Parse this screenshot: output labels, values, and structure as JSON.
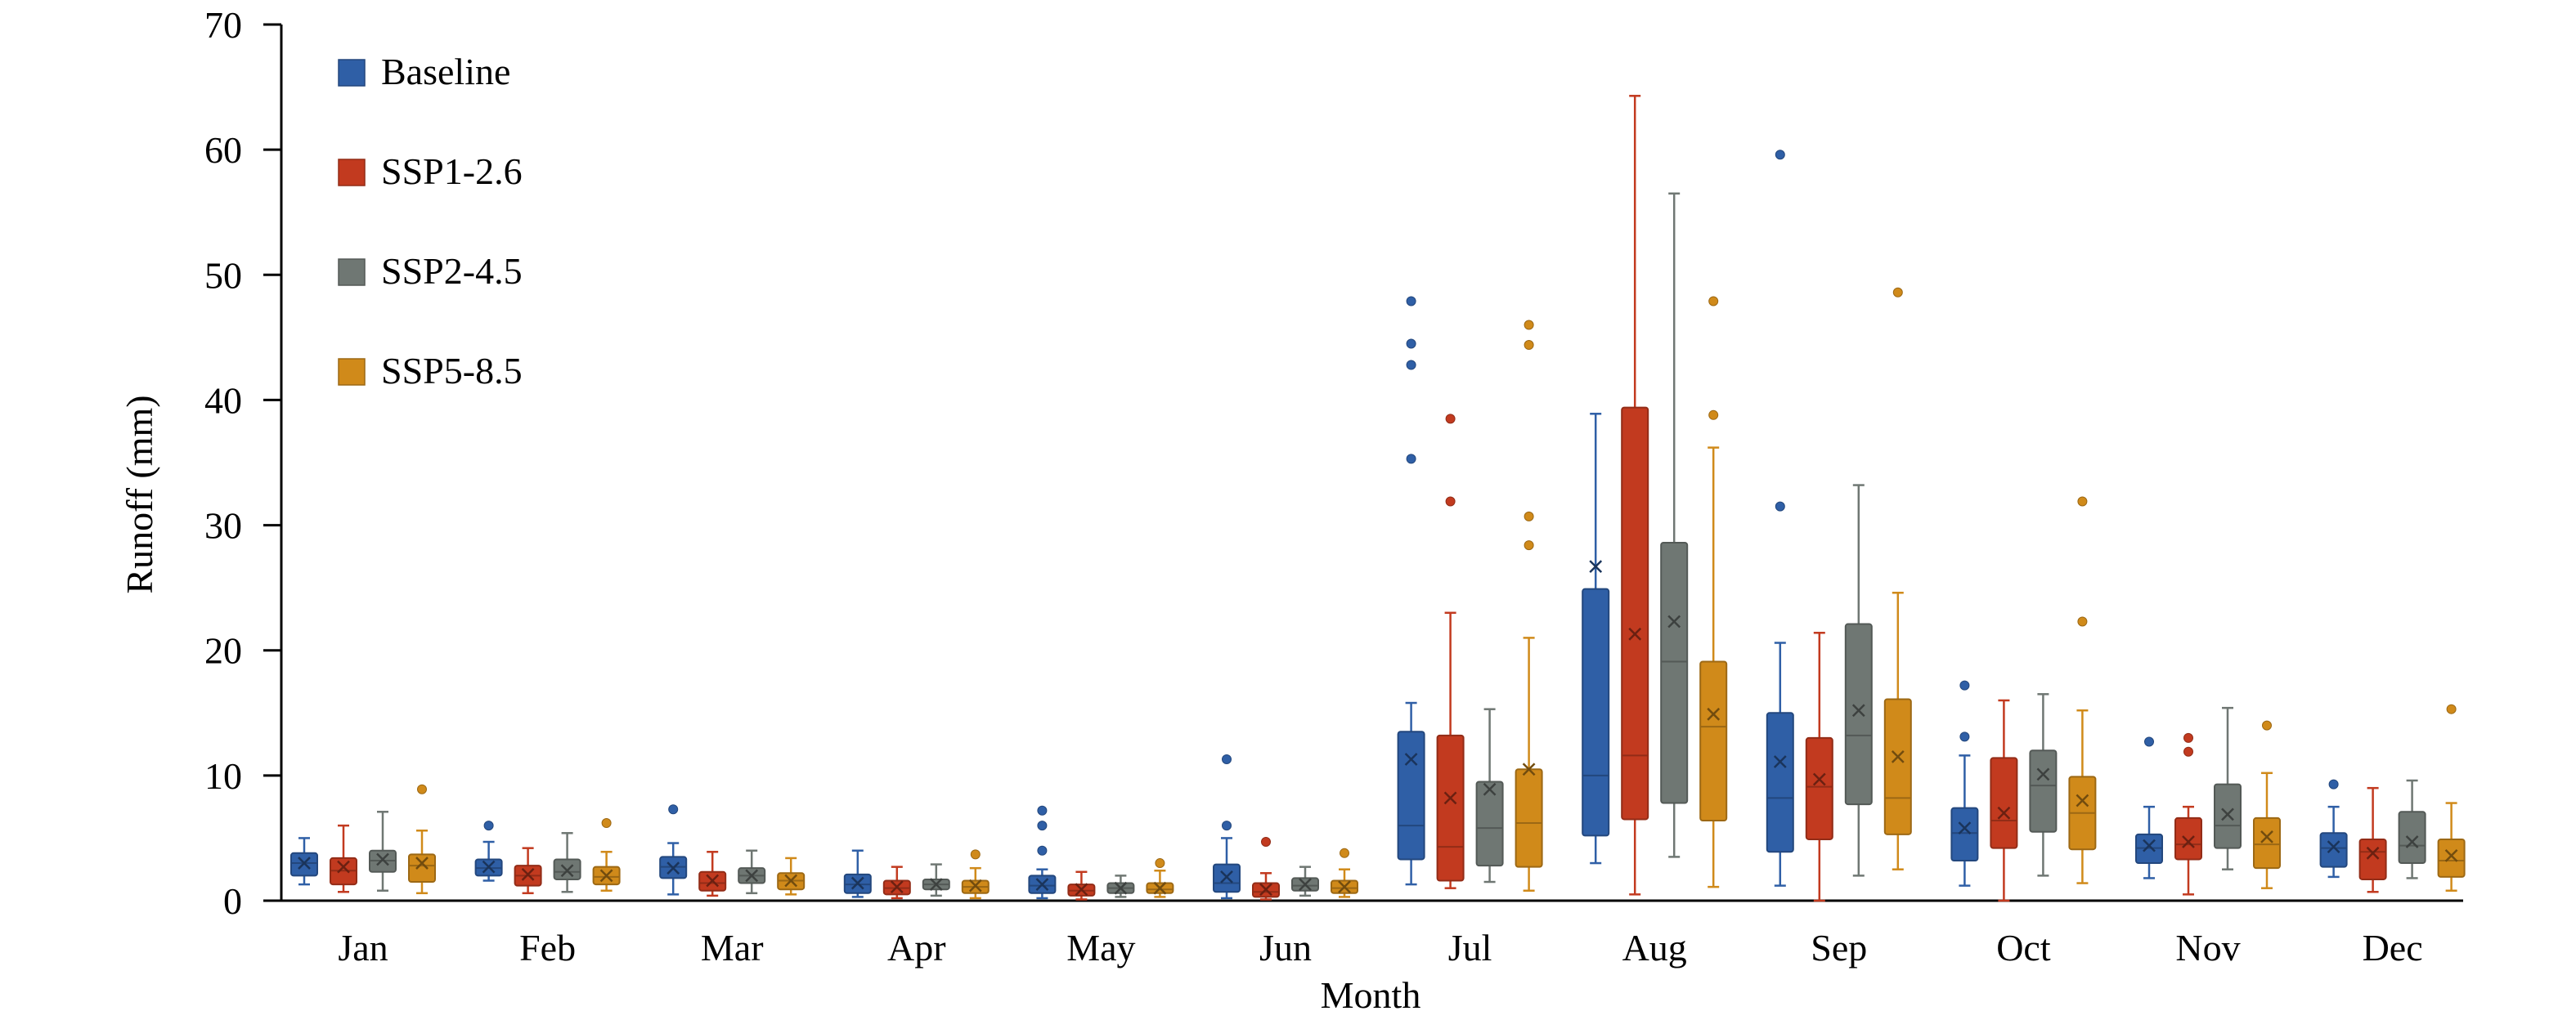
{
  "colors": {
    "Baseline": "#2f5fa6",
    "SSP1-2.6": "#c23a1f",
    "SSP2-4.5": "#6f7773",
    "SSP5-8.5": "#d08a1a"
  },
  "chart_data": {
    "type": "boxplot",
    "xlabel": "Month",
    "ylabel": "Runoff (mm)",
    "ylim": [
      0,
      70
    ],
    "yticks": [
      0,
      10,
      20,
      30,
      40,
      50,
      60,
      70
    ],
    "grid": false,
    "legend_position": "top-left",
    "categories": [
      "Jan",
      "Feb",
      "Mar",
      "Apr",
      "May",
      "Jun",
      "Jul",
      "Aug",
      "Sep",
      "Oct",
      "Nov",
      "Dec"
    ],
    "series": [
      {
        "name": "Baseline",
        "boxes": [
          {
            "min": 1.3,
            "q1": 2.0,
            "median": 3.0,
            "q3": 3.8,
            "max": 5.0,
            "mean": 3.0,
            "outliers": []
          },
          {
            "min": 1.6,
            "q1": 2.0,
            "median": 2.6,
            "q3": 3.3,
            "max": 4.7,
            "mean": 2.7,
            "outliers": [
              6.0
            ]
          },
          {
            "min": 0.5,
            "q1": 1.8,
            "median": 2.7,
            "q3": 3.5,
            "max": 4.6,
            "mean": 2.6,
            "outliers": [
              7.3
            ]
          },
          {
            "min": 0.3,
            "q1": 0.6,
            "median": 1.3,
            "q3": 2.1,
            "max": 4.0,
            "mean": 1.4,
            "outliers": []
          },
          {
            "min": 0.2,
            "q1": 0.6,
            "median": 1.2,
            "q3": 2.0,
            "max": 2.5,
            "mean": 1.3,
            "outliers": [
              4.0,
              6.0,
              7.2
            ]
          },
          {
            "min": 0.2,
            "q1": 0.7,
            "median": 1.4,
            "q3": 2.9,
            "max": 5.0,
            "mean": 1.9,
            "outliers": [
              6.0,
              11.3
            ]
          },
          {
            "min": 1.3,
            "q1": 3.3,
            "median": 6.0,
            "q3": 13.5,
            "max": 15.8,
            "mean": 11.3,
            "outliers": [
              35.3,
              42.8,
              44.5,
              47.9
            ]
          },
          {
            "min": 3.0,
            "q1": 5.2,
            "median": 10.0,
            "q3": 24.9,
            "max": 38.9,
            "mean": 26.7,
            "outliers": []
          },
          {
            "min": 1.2,
            "q1": 3.9,
            "median": 8.2,
            "q3": 15.0,
            "max": 20.6,
            "mean": 11.1,
            "outliers": [
              31.5,
              59.6
            ]
          },
          {
            "min": 1.2,
            "q1": 3.2,
            "median": 5.4,
            "q3": 7.4,
            "max": 11.6,
            "mean": 5.8,
            "outliers": [
              13.1,
              17.2
            ]
          },
          {
            "min": 1.8,
            "q1": 3.0,
            "median": 4.2,
            "q3": 5.3,
            "max": 7.5,
            "mean": 4.4,
            "outliers": [
              12.7
            ]
          },
          {
            "min": 1.9,
            "q1": 2.7,
            "median": 4.2,
            "q3": 5.4,
            "max": 7.5,
            "mean": 4.3,
            "outliers": [
              9.3
            ]
          }
        ]
      },
      {
        "name": "SSP1-2.6",
        "boxes": [
          {
            "min": 0.7,
            "q1": 1.3,
            "median": 2.4,
            "q3": 3.4,
            "max": 6.0,
            "mean": 2.7,
            "outliers": []
          },
          {
            "min": 0.6,
            "q1": 1.2,
            "median": 2.0,
            "q3": 2.8,
            "max": 4.2,
            "mean": 2.1,
            "outliers": []
          },
          {
            "min": 0.4,
            "q1": 0.8,
            "median": 1.4,
            "q3": 2.3,
            "max": 3.9,
            "mean": 1.6,
            "outliers": []
          },
          {
            "min": 0.2,
            "q1": 0.5,
            "median": 1.0,
            "q3": 1.6,
            "max": 2.7,
            "mean": 1.1,
            "outliers": []
          },
          {
            "min": 0.1,
            "q1": 0.4,
            "median": 0.8,
            "q3": 1.3,
            "max": 2.3,
            "mean": 0.9,
            "outliers": []
          },
          {
            "min": 0.1,
            "q1": 0.3,
            "median": 0.7,
            "q3": 1.4,
            "max": 2.2,
            "mean": 0.9,
            "outliers": [
              4.7
            ]
          },
          {
            "min": 1.0,
            "q1": 1.6,
            "median": 4.3,
            "q3": 13.2,
            "max": 23.0,
            "mean": 8.2,
            "outliers": [
              31.9,
              38.5
            ]
          },
          {
            "min": 0.5,
            "q1": 6.5,
            "median": 11.6,
            "q3": 39.4,
            "max": 64.3,
            "mean": 21.3,
            "outliers": []
          },
          {
            "min": 0.0,
            "q1": 4.9,
            "median": 9.1,
            "q3": 13.0,
            "max": 21.4,
            "mean": 9.7,
            "outliers": []
          },
          {
            "min": 0.0,
            "q1": 4.2,
            "median": 6.4,
            "q3": 11.4,
            "max": 16.0,
            "mean": 7.0,
            "outliers": []
          },
          {
            "min": 0.5,
            "q1": 3.3,
            "median": 4.5,
            "q3": 6.6,
            "max": 7.5,
            "mean": 4.7,
            "outliers": [
              11.9,
              13.0
            ]
          },
          {
            "min": 0.7,
            "q1": 1.7,
            "median": 3.9,
            "q3": 4.9,
            "max": 9.0,
            "mean": 3.8,
            "outliers": []
          }
        ]
      },
      {
        "name": "SSP2-4.5",
        "boxes": [
          {
            "min": 0.8,
            "q1": 2.3,
            "median": 3.2,
            "q3": 4.0,
            "max": 7.1,
            "mean": 3.3,
            "outliers": []
          },
          {
            "min": 0.7,
            "q1": 1.7,
            "median": 2.3,
            "q3": 3.3,
            "max": 5.4,
            "mean": 2.4,
            "outliers": []
          },
          {
            "min": 0.6,
            "q1": 1.4,
            "median": 2.0,
            "q3": 2.6,
            "max": 4.0,
            "mean": 2.0,
            "outliers": []
          },
          {
            "min": 0.4,
            "q1": 0.9,
            "median": 1.3,
            "q3": 1.7,
            "max": 2.9,
            "mean": 1.3,
            "outliers": []
          },
          {
            "min": 0.3,
            "q1": 0.6,
            "median": 1.0,
            "q3": 1.4,
            "max": 2.0,
            "mean": 1.0,
            "outliers": []
          },
          {
            "min": 0.4,
            "q1": 0.8,
            "median": 1.2,
            "q3": 1.8,
            "max": 2.7,
            "mean": 1.3,
            "outliers": []
          },
          {
            "min": 1.5,
            "q1": 2.8,
            "median": 5.8,
            "q3": 9.5,
            "max": 15.3,
            "mean": 8.9,
            "outliers": []
          },
          {
            "min": 3.5,
            "q1": 7.8,
            "median": 19.1,
            "q3": 28.6,
            "max": 56.5,
            "mean": 22.3,
            "outliers": []
          },
          {
            "min": 2.0,
            "q1": 7.7,
            "median": 13.2,
            "q3": 22.1,
            "max": 33.2,
            "mean": 15.2,
            "outliers": []
          },
          {
            "min": 2.0,
            "q1": 5.5,
            "median": 9.2,
            "q3": 12.0,
            "max": 16.5,
            "mean": 10.1,
            "outliers": []
          },
          {
            "min": 2.5,
            "q1": 4.2,
            "median": 6.0,
            "q3": 9.3,
            "max": 15.4,
            "mean": 6.9,
            "outliers": []
          },
          {
            "min": 1.8,
            "q1": 3.0,
            "median": 4.4,
            "q3": 7.1,
            "max": 9.6,
            "mean": 4.7,
            "outliers": []
          }
        ]
      },
      {
        "name": "SSP5-8.5",
        "boxes": [
          {
            "min": 0.6,
            "q1": 1.5,
            "median": 2.8,
            "q3": 3.7,
            "max": 5.6,
            "mean": 3.0,
            "outliers": [
              8.9
            ]
          },
          {
            "min": 0.8,
            "q1": 1.3,
            "median": 1.9,
            "q3": 2.7,
            "max": 3.9,
            "mean": 2.0,
            "outliers": [
              6.2
            ]
          },
          {
            "min": 0.5,
            "q1": 0.9,
            "median": 1.6,
            "q3": 2.2,
            "max": 3.4,
            "mean": 1.6,
            "outliers": []
          },
          {
            "min": 0.2,
            "q1": 0.6,
            "median": 1.1,
            "q3": 1.6,
            "max": 2.6,
            "mean": 1.2,
            "outliers": [
              3.7
            ]
          },
          {
            "min": 0.3,
            "q1": 0.6,
            "median": 0.9,
            "q3": 1.4,
            "max": 2.4,
            "mean": 1.0,
            "outliers": [
              3.0
            ]
          },
          {
            "min": 0.3,
            "q1": 0.6,
            "median": 1.0,
            "q3": 1.6,
            "max": 2.5,
            "mean": 1.1,
            "outliers": [
              3.8
            ]
          },
          {
            "min": 0.8,
            "q1": 2.7,
            "median": 6.2,
            "q3": 10.5,
            "max": 21.0,
            "mean": 10.5,
            "outliers": [
              28.4,
              30.7,
              44.4,
              46.0
            ]
          },
          {
            "min": 1.1,
            "q1": 6.4,
            "median": 13.9,
            "q3": 19.1,
            "max": 36.2,
            "mean": 14.9,
            "outliers": [
              38.8,
              47.9
            ]
          },
          {
            "min": 2.5,
            "q1": 5.3,
            "median": 8.2,
            "q3": 16.1,
            "max": 24.6,
            "mean": 11.5,
            "outliers": [
              48.6
            ]
          },
          {
            "min": 1.4,
            "q1": 4.1,
            "median": 7.0,
            "q3": 9.9,
            "max": 15.2,
            "mean": 8.0,
            "outliers": [
              22.3,
              31.9
            ]
          },
          {
            "min": 1.0,
            "q1": 2.6,
            "median": 4.5,
            "q3": 6.6,
            "max": 10.2,
            "mean": 5.1,
            "outliers": [
              14.0
            ]
          },
          {
            "min": 0.8,
            "q1": 1.9,
            "median": 3.2,
            "q3": 4.9,
            "max": 7.8,
            "mean": 3.6,
            "outliers": [
              15.3
            ]
          }
        ]
      }
    ]
  }
}
